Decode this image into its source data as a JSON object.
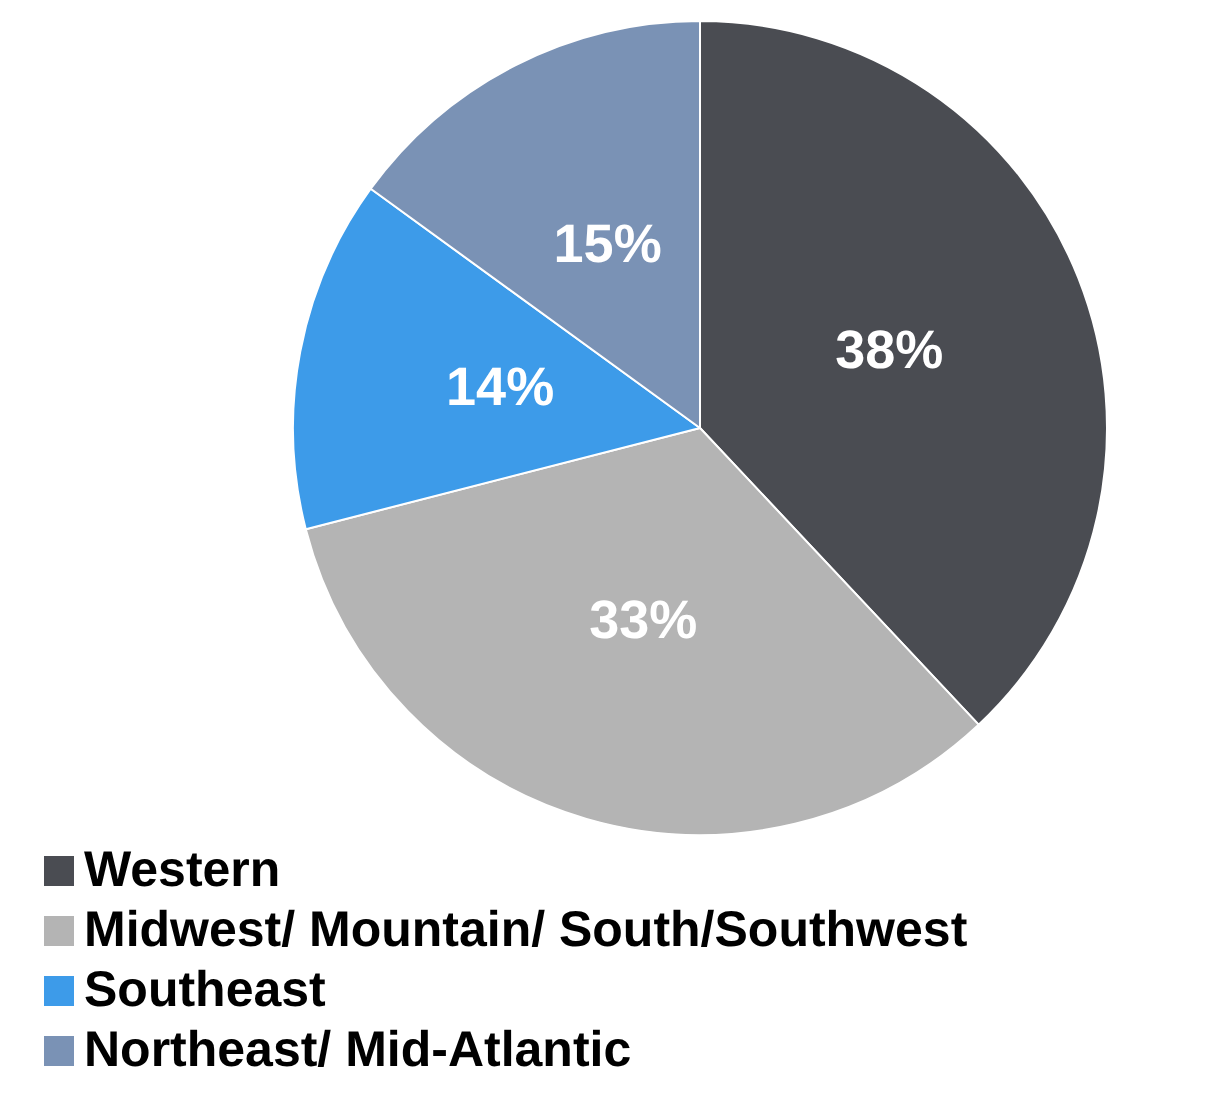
{
  "chart_data": {
    "type": "pie",
    "categories": [
      "Western",
      "Midwest/ Mountain/ South/Southwest",
      "Southeast",
      "Northeast/ Mid-Atlantic"
    ],
    "values": [
      38,
      33,
      14,
      15
    ],
    "value_labels": [
      "38%",
      "33%",
      "14%",
      "15%"
    ],
    "colors": [
      "#4a4c52",
      "#b4b4b4",
      "#3d9be9",
      "#7a92b5"
    ],
    "legend": "bottom"
  }
}
